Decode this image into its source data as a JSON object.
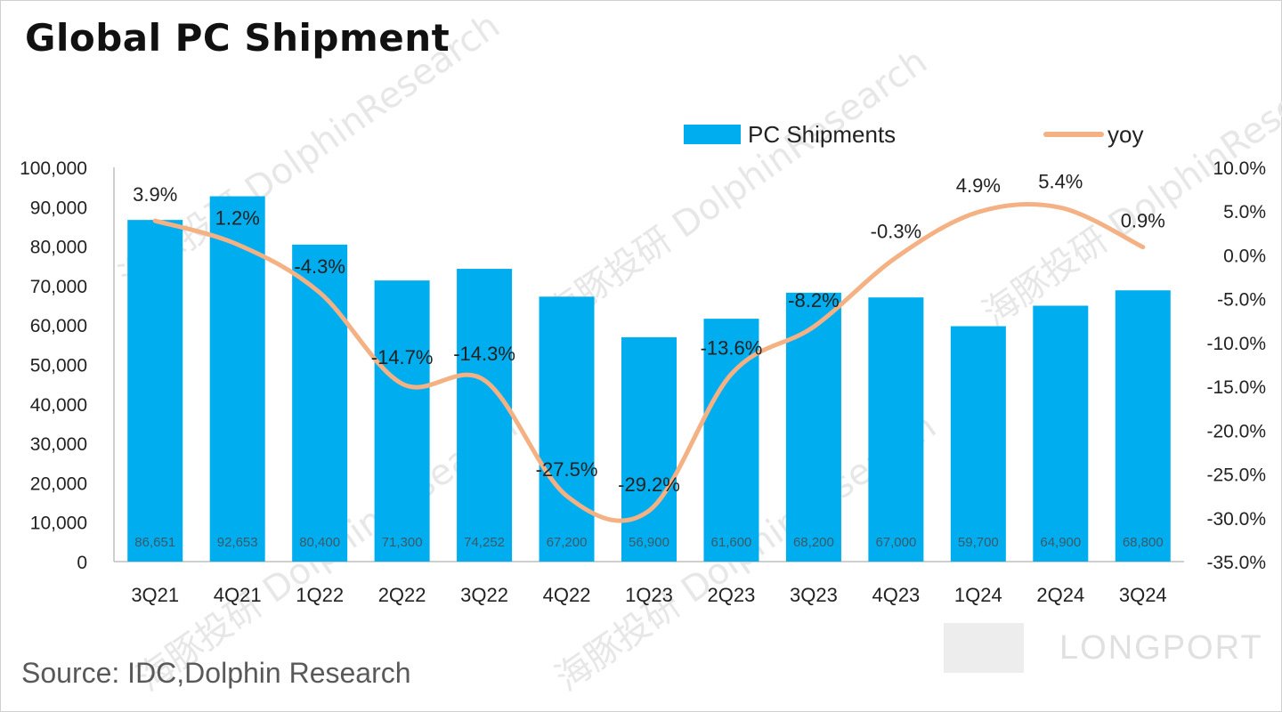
{
  "title": "Global PC Shipment",
  "source": "Source: IDC,Dolphin Research",
  "watermark": {
    "brand": "LONGPORT",
    "text": "海豚投研 DolphinResearch"
  },
  "colors": {
    "bar": "#00aeef",
    "line": "#f4b183",
    "axis": "#bfbfbf",
    "text": "#222222"
  },
  "chart_data": {
    "type": "bar",
    "title": "Global PC Shipment",
    "categories": [
      "3Q21",
      "4Q21",
      "1Q22",
      "2Q22",
      "3Q22",
      "4Q22",
      "1Q23",
      "2Q23",
      "3Q23",
      "4Q23",
      "1Q24",
      "2Q24",
      "3Q24"
    ],
    "series": [
      {
        "name": "PC Shipments",
        "type": "bar",
        "axis": "left",
        "values": [
          86651,
          92653,
          80400,
          71300,
          74252,
          67200,
          56900,
          61600,
          68200,
          67000,
          59700,
          64900,
          68800
        ],
        "value_labels": [
          "86,651",
          "92,653",
          "80,400",
          "71,300",
          "74,252",
          "67,200",
          "56,900",
          "61,600",
          "68,200",
          "67,000",
          "59,700",
          "64,900",
          "68,800"
        ]
      },
      {
        "name": "yoy",
        "type": "line",
        "axis": "right",
        "values": [
          3.9,
          1.2,
          -4.3,
          -14.7,
          -14.3,
          -27.5,
          -29.2,
          -13.6,
          -8.2,
          -0.3,
          4.9,
          5.4,
          0.9
        ],
        "value_labels": [
          "3.9%",
          "1.2%",
          "-4.3%",
          "-14.7%",
          "-14.3%",
          "-27.5%",
          "-29.2%",
          "-13.6%",
          "-8.2%",
          "-0.3%",
          "4.9%",
          "5.4%",
          "0.9%"
        ]
      }
    ],
    "y_left": {
      "min": 0,
      "max": 100000,
      "ticks": [
        "0",
        "10,000",
        "20,000",
        "30,000",
        "40,000",
        "50,000",
        "60,000",
        "70,000",
        "80,000",
        "90,000",
        "100,000"
      ]
    },
    "y_right": {
      "min": -35,
      "max": 10,
      "ticks": [
        "-35.0%",
        "-30.0%",
        "-25.0%",
        "-20.0%",
        "-15.0%",
        "-10.0%",
        "-5.0%",
        "0.0%",
        "5.0%",
        "10.0%"
      ]
    },
    "legend_position": "top-right",
    "grid": false
  }
}
